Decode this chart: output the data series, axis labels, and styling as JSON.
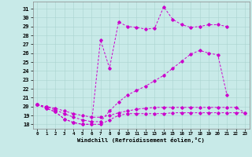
{
  "background_color": "#c8eae8",
  "line_color": "#cc00cc",
  "grid_color": "#aad4d0",
  "x_ticks": [
    0,
    1,
    2,
    3,
    4,
    5,
    6,
    7,
    8,
    9,
    10,
    11,
    12,
    13,
    14,
    15,
    16,
    17,
    18,
    19,
    20,
    21,
    22,
    23
  ],
  "y_ticks": [
    18,
    19,
    20,
    21,
    22,
    23,
    24,
    25,
    26,
    27,
    28,
    29,
    30,
    31
  ],
  "ylim": [
    17.5,
    31.8
  ],
  "xlim": [
    -0.5,
    23.5
  ],
  "xlabel": "Windchill (Refroidissement éolien,°C)",
  "series": [
    {
      "x": [
        0,
        1,
        2,
        3,
        4,
        5,
        6,
        7,
        8,
        9,
        10,
        11,
        12,
        13,
        14,
        15,
        16,
        17,
        18,
        19,
        20,
        21,
        22,
        23
      ],
      "y": [
        20.2,
        19.8,
        19.4,
        18.6,
        18.2,
        18.0,
        18.0,
        18.0,
        18.5,
        19.0,
        19.2,
        19.2,
        19.2,
        19.2,
        19.2,
        19.3,
        19.3,
        19.3,
        19.3,
        19.3,
        19.3,
        19.3,
        19.3,
        19.3
      ]
    },
    {
      "x": [
        0,
        1,
        2,
        3,
        4,
        5,
        6,
        7,
        8,
        9,
        10,
        11,
        12,
        13,
        14,
        15,
        16,
        17,
        18,
        19,
        20,
        21,
        22,
        23
      ],
      "y": [
        20.2,
        19.8,
        19.4,
        18.6,
        18.2,
        18.0,
        18.0,
        27.5,
        24.3,
        29.5,
        29.0,
        28.9,
        28.7,
        28.8,
        31.2,
        29.8,
        29.2,
        28.9,
        29.0,
        29.2,
        29.2,
        29.0,
        null,
        null
      ]
    },
    {
      "x": [
        0,
        1,
        2,
        3,
        4,
        5,
        6,
        7,
        8,
        9,
        10,
        11,
        12,
        13,
        14,
        15,
        16,
        17,
        18,
        19,
        20,
        21,
        22,
        23
      ],
      "y": [
        20.2,
        20.0,
        19.6,
        19.2,
        18.8,
        18.5,
        18.3,
        18.3,
        19.5,
        20.5,
        21.3,
        21.8,
        22.3,
        22.9,
        23.5,
        24.3,
        25.1,
        25.9,
        26.3,
        26.0,
        25.8,
        21.3,
        null,
        null
      ]
    },
    {
      "x": [
        0,
        1,
        2,
        3,
        4,
        5,
        6,
        7,
        8,
        9,
        10,
        11,
        12,
        13,
        14,
        15,
        16,
        17,
        18,
        19,
        20,
        21,
        22,
        23
      ],
      "y": [
        20.2,
        20.0,
        19.8,
        19.5,
        19.2,
        19.0,
        18.8,
        18.8,
        19.0,
        19.3,
        19.5,
        19.7,
        19.8,
        19.9,
        19.9,
        19.9,
        19.9,
        19.9,
        19.9,
        19.9,
        19.9,
        19.9,
        19.9,
        19.3
      ]
    }
  ]
}
